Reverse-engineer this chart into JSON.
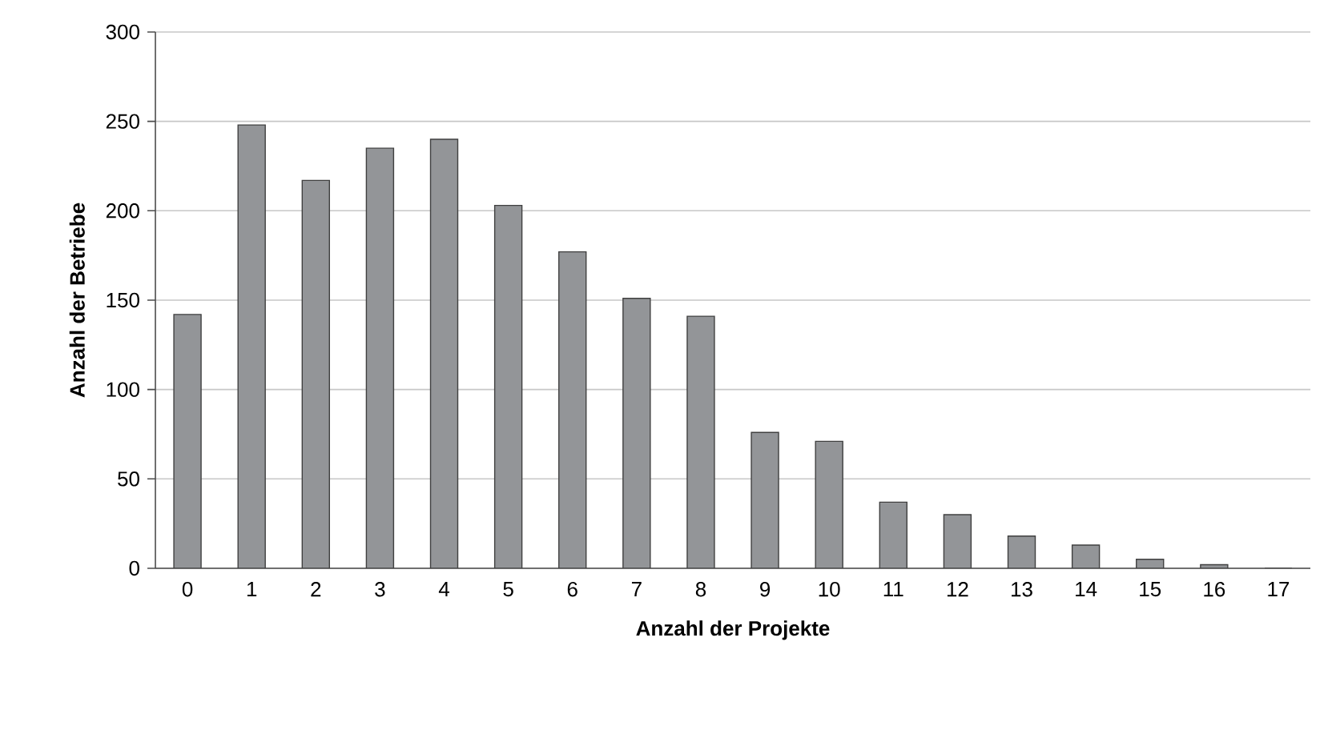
{
  "chart_data": {
    "type": "bar",
    "xlabel": "Anzahl der Projekte",
    "ylabel": "Anzahl der Betriebe",
    "categories": [
      "0",
      "1",
      "2",
      "3",
      "4",
      "5",
      "6",
      "7",
      "8",
      "9",
      "10",
      "11",
      "12",
      "13",
      "14",
      "15",
      "16",
      "17"
    ],
    "values": [
      142,
      248,
      217,
      235,
      240,
      203,
      177,
      151,
      141,
      76,
      71,
      37,
      30,
      18,
      13,
      5,
      2,
      0
    ],
    "color": "#939598",
    "ylim": [
      0,
      300
    ],
    "yticks": [
      0,
      50,
      100,
      150,
      200,
      250,
      300
    ],
    "grid": "y"
  }
}
